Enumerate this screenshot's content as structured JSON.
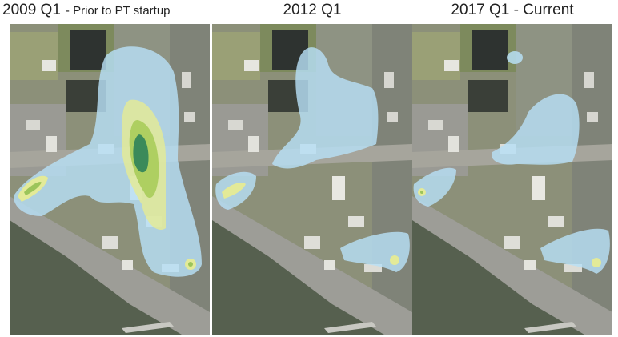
{
  "panels": [
    {
      "title": "2009 Q1",
      "subtitle": "- Prior to PT startup"
    },
    {
      "title": "2012 Q1"
    },
    {
      "title": "2017 Q1 - Current"
    }
  ]
}
